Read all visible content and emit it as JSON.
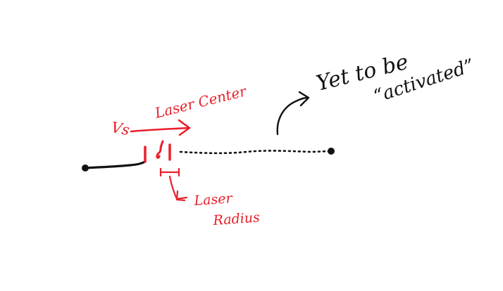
{
  "colors": {
    "ink_black": "#111111",
    "ink_red": "#e8202a",
    "background": "#ffffff"
  },
  "labels": {
    "vs": "Vs",
    "laser_center": "Laser Center",
    "laser": "Laser",
    "radius": "Radius",
    "yet_to_be": "Yet to be",
    "activated": "“activated”"
  }
}
